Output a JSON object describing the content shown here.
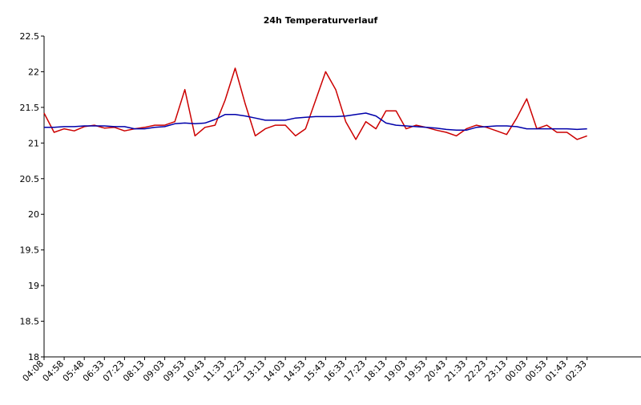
{
  "chart_data": {
    "type": "line",
    "title": "24h Temperaturverlauf",
    "xlabel": "",
    "ylabel": "",
    "ylim": [
      18,
      22.5
    ],
    "yticks": [
      "22.5",
      "22",
      "21.5",
      "21",
      "20.5",
      "20",
      "19.5",
      "19",
      "18.5",
      "18"
    ],
    "ytick_values": [
      22.5,
      22,
      21.5,
      21,
      20.5,
      20,
      19.5,
      19,
      18.5,
      18
    ],
    "xticks": [
      "04:08",
      "04:58",
      "05:48",
      "06:33",
      "07:23",
      "08:13",
      "09:03",
      "09:53",
      "10:43",
      "11:33",
      "12:23",
      "13:13",
      "14:03",
      "14:53",
      "15:43",
      "16:33",
      "17:23",
      "18:13",
      "19:03",
      "19:53",
      "20:43",
      "21:33",
      "22:23",
      "23:13",
      "00:03",
      "00:53",
      "01:43",
      "02:33"
    ],
    "grid": false,
    "legend": "none",
    "x": [
      0,
      0.5,
      1,
      1.5,
      2,
      2.5,
      3,
      3.5,
      4,
      4.5,
      5,
      5.5,
      6,
      6.5,
      7,
      7.5,
      8,
      8.5,
      9,
      9.5,
      10,
      10.5,
      11,
      11.5,
      12,
      12.5,
      13,
      13.5,
      14,
      14.5,
      15,
      15.5,
      16,
      16.5,
      17,
      17.5,
      18,
      18.5,
      19,
      19.5,
      20,
      20.5,
      21,
      21.5,
      22,
      22.5,
      23,
      23.5,
      24,
      24.5,
      25,
      25.5,
      26,
      26.5,
      27
    ],
    "series": [
      {
        "color": "#cc0000",
        "values": [
          21.42,
          21.15,
          21.2,
          21.17,
          21.23,
          21.25,
          21.21,
          21.22,
          21.17,
          21.2,
          21.22,
          21.25,
          21.25,
          21.3,
          21.75,
          21.1,
          21.22,
          21.25,
          21.6,
          22.05,
          21.55,
          21.1,
          21.2,
          21.25,
          21.25,
          21.1,
          21.2,
          21.6,
          22.0,
          21.75,
          21.3,
          21.05,
          21.3,
          21.2,
          21.45,
          21.45,
          21.2,
          21.25,
          21.22,
          21.18,
          21.15,
          21.1,
          21.2,
          21.25,
          21.22,
          21.17,
          21.12,
          21.35,
          21.62,
          21.2,
          21.25,
          21.15,
          21.15,
          21.05,
          21.1
        ]
      },
      {
        "color": "#0000aa",
        "values": [
          21.22,
          21.22,
          21.23,
          21.23,
          21.24,
          21.24,
          21.24,
          21.23,
          21.23,
          21.2,
          21.2,
          21.22,
          21.23,
          21.27,
          21.28,
          21.27,
          21.28,
          21.33,
          21.4,
          21.4,
          21.38,
          21.35,
          21.32,
          21.32,
          21.32,
          21.35,
          21.36,
          21.37,
          21.37,
          21.37,
          21.38,
          21.4,
          21.42,
          21.38,
          21.28,
          21.25,
          21.24,
          21.23,
          21.22,
          21.21,
          21.19,
          21.18,
          21.18,
          21.22,
          21.23,
          21.24,
          21.24,
          21.23,
          21.2,
          21.2,
          21.2,
          21.2,
          21.2,
          21.19,
          21.2
        ]
      }
    ]
  }
}
